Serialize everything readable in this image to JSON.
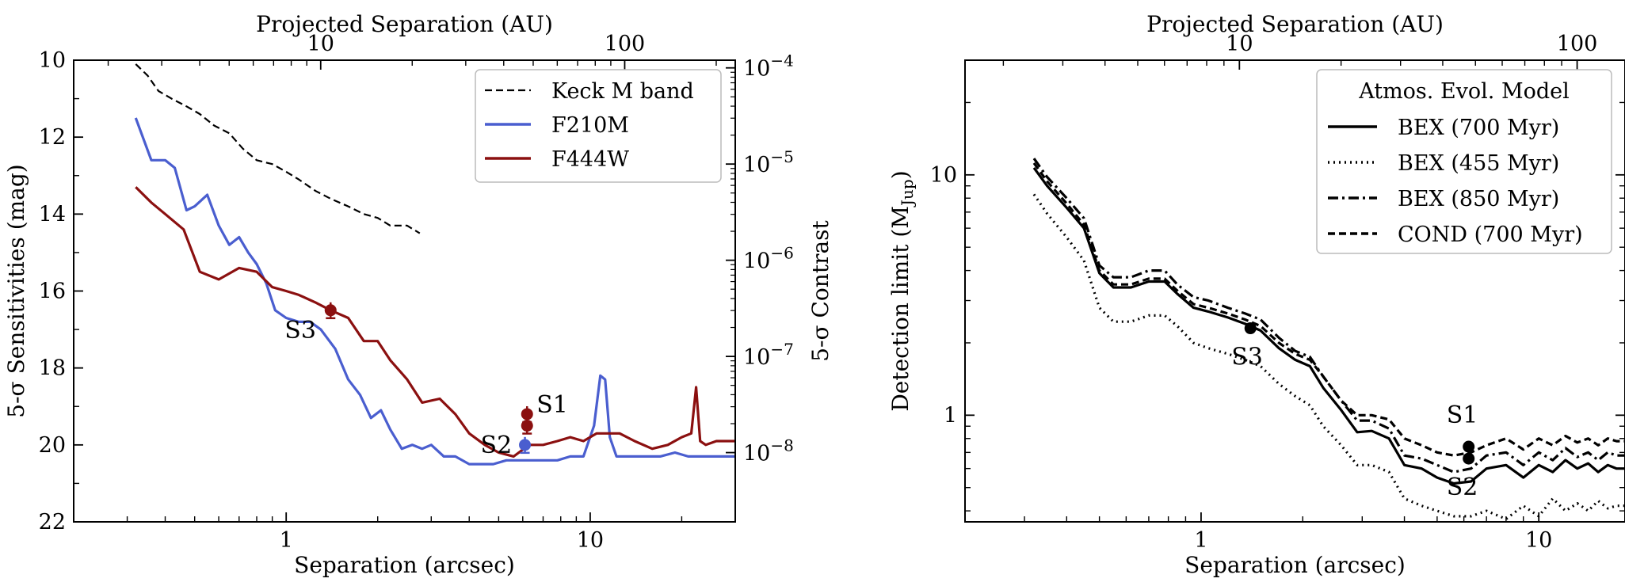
{
  "chart_data": [
    {
      "type": "line",
      "panel": "left",
      "xscale": "log",
      "xlim": [
        0.2,
        30
      ],
      "ylim": [
        22,
        10
      ],
      "y_inverted": true,
      "xlabel": "Separation (arcsec)",
      "ylabel": "5-σ Sensitivities (mag)",
      "x2label": "Projected Separation (AU)",
      "y2label": "5-σ Contrast",
      "xticks": [
        {
          "v": 1,
          "label": "1"
        },
        {
          "v": 10,
          "label": "10"
        }
      ],
      "yticks": [
        10,
        12,
        14,
        16,
        18,
        20,
        22
      ],
      "x2ticks": [
        {
          "v": 10,
          "label": "10"
        },
        {
          "v": 100,
          "label": "100"
        }
      ],
      "x2_au_per_arcsec": 7.7,
      "y2ticks": [
        {
          "mag": 10.2,
          "label": "10",
          "exp": "−4"
        },
        {
          "mag": 12.7,
          "label": "10",
          "exp": "−5"
        },
        {
          "mag": 15.2,
          "label": "10",
          "exp": "−6"
        },
        {
          "mag": 17.7,
          "label": "10",
          "exp": "−7"
        },
        {
          "mag": 20.2,
          "label": "10",
          "exp": "−8"
        }
      ],
      "legend_position": "top-right",
      "series": [
        {
          "name": "Keck M band",
          "color": "#000000",
          "style": "dashed",
          "x": [
            0.32,
            0.35,
            0.38,
            0.42,
            0.47,
            0.52,
            0.58,
            0.65,
            0.72,
            0.8,
            0.9,
            1.0,
            1.1,
            1.25,
            1.4,
            1.6,
            1.8,
            2.0,
            2.2,
            2.5,
            2.75
          ],
          "y": [
            10.1,
            10.4,
            10.8,
            11.0,
            11.2,
            11.4,
            11.7,
            11.9,
            12.3,
            12.6,
            12.7,
            12.9,
            13.1,
            13.4,
            13.6,
            13.8,
            14.0,
            14.1,
            14.3,
            14.3,
            14.5
          ]
        },
        {
          "name": "F210M",
          "color": "#4a5ecf",
          "style": "solid",
          "x": [
            0.32,
            0.36,
            0.4,
            0.43,
            0.47,
            0.5,
            0.55,
            0.6,
            0.65,
            0.7,
            0.75,
            0.8,
            0.86,
            0.92,
            1.0,
            1.1,
            1.2,
            1.3,
            1.45,
            1.6,
            1.75,
            1.9,
            2.05,
            2.2,
            2.4,
            2.6,
            2.8,
            3.0,
            3.3,
            3.6,
            4.0,
            4.4,
            4.8,
            5.3,
            5.8,
            6.4,
            7.0,
            7.8,
            8.6,
            9.5,
            10.3,
            10.8,
            11.2,
            11.6,
            12.2,
            13.5,
            15,
            17,
            19,
            21,
            24,
            27,
            30
          ],
          "y": [
            11.5,
            12.6,
            12.6,
            12.8,
            13.9,
            13.8,
            13.5,
            14.3,
            14.8,
            14.6,
            15.0,
            15.3,
            15.8,
            16.5,
            16.7,
            16.8,
            16.8,
            17.0,
            17.5,
            18.3,
            18.7,
            19.3,
            19.1,
            19.6,
            20.1,
            20.0,
            20.1,
            20.0,
            20.3,
            20.3,
            20.5,
            20.5,
            20.5,
            20.4,
            20.4,
            20.4,
            20.4,
            20.4,
            20.3,
            20.3,
            19.5,
            18.2,
            18.3,
            19.8,
            20.3,
            20.3,
            20.3,
            20.3,
            20.2,
            20.3,
            20.3,
            20.3,
            20.3
          ]
        },
        {
          "name": "F444W",
          "color": "#8b1010",
          "style": "solid",
          "x": [
            0.32,
            0.36,
            0.4,
            0.46,
            0.52,
            0.6,
            0.7,
            0.8,
            0.9,
            1.0,
            1.1,
            1.25,
            1.4,
            1.6,
            1.8,
            2.0,
            2.2,
            2.5,
            2.8,
            3.2,
            3.6,
            4.0,
            4.5,
            5.0,
            5.6,
            6.3,
            7.0,
            7.8,
            8.6,
            9.5,
            10.5,
            11.5,
            12.5,
            14,
            16,
            18,
            20,
            21.5,
            22.3,
            23,
            24,
            26,
            28,
            30
          ],
          "y": [
            13.3,
            13.7,
            14.0,
            14.4,
            15.5,
            15.7,
            15.4,
            15.5,
            15.9,
            16.0,
            16.1,
            16.3,
            16.5,
            16.7,
            17.3,
            17.3,
            17.8,
            18.3,
            18.9,
            18.8,
            19.2,
            19.7,
            20.0,
            20.2,
            20.3,
            20.0,
            20.0,
            19.9,
            19.8,
            19.9,
            19.7,
            19.7,
            19.7,
            19.9,
            20.1,
            20.0,
            19.8,
            19.7,
            18.5,
            19.9,
            20.0,
            19.9,
            19.9,
            19.9
          ]
        }
      ],
      "markers": [
        {
          "label": "S1",
          "x": 6.2,
          "y": 19.2,
          "color": "#8b1010"
        },
        {
          "label": "",
          "x": 6.2,
          "y": 19.5,
          "color": "#8b1010"
        },
        {
          "label": "S3",
          "x": 1.4,
          "y": 16.5,
          "color": "#8b1010"
        },
        {
          "label": "S2",
          "x": 6.1,
          "y": 20.0,
          "color": "#4a5ecf"
        }
      ]
    },
    {
      "type": "line",
      "panel": "right",
      "xscale": "log",
      "yscale": "log",
      "xlim": [
        0.2,
        18
      ],
      "ylim": [
        0.36,
        30
      ],
      "xlabel": "Separation (arcsec)",
      "ylabel": "Detection limit (M",
      "ylabel_sub": "Jup",
      "x2label": "Projected Separation (AU)",
      "xticks": [
        {
          "v": 1,
          "label": "1"
        },
        {
          "v": 10,
          "label": "10"
        }
      ],
      "yticks": [
        {
          "v": 1,
          "label": "1"
        },
        {
          "v": 10,
          "label": "10"
        }
      ],
      "x2ticks": [
        {
          "v": 10,
          "label": "10"
        },
        {
          "v": 100,
          "label": "100"
        }
      ],
      "x2_au_per_arcsec": 7.7,
      "legend_title": "Atmos. Evol. Model",
      "legend_position": "top-right",
      "series": [
        {
          "name": "BEX (700 Myr)",
          "color": "#000000",
          "style": "solid",
          "x": [
            0.32,
            0.35,
            0.4,
            0.45,
            0.5,
            0.55,
            0.62,
            0.7,
            0.78,
            0.85,
            0.95,
            1.05,
            1.2,
            1.35,
            1.5,
            1.7,
            1.9,
            2.1,
            2.3,
            2.6,
            2.9,
            3.2,
            3.6,
            4.0,
            4.5,
            5.0,
            5.6,
            6.3,
            7.0,
            8.0,
            9.0,
            10,
            11,
            12,
            13,
            14,
            15,
            16,
            17,
            18
          ],
          "y": [
            10.7,
            9.0,
            7.3,
            6.0,
            3.9,
            3.4,
            3.4,
            3.6,
            3.6,
            3.2,
            2.8,
            2.7,
            2.55,
            2.4,
            2.25,
            1.9,
            1.7,
            1.6,
            1.3,
            1.05,
            0.85,
            0.86,
            0.8,
            0.62,
            0.6,
            0.55,
            0.52,
            0.53,
            0.6,
            0.62,
            0.55,
            0.62,
            0.58,
            0.65,
            0.6,
            0.63,
            0.58,
            0.62,
            0.6,
            0.6
          ]
        },
        {
          "name": "BEX (455 Myr)",
          "color": "#000000",
          "style": "dotted",
          "x": [
            0.32,
            0.35,
            0.4,
            0.45,
            0.5,
            0.55,
            0.62,
            0.7,
            0.78,
            0.85,
            0.95,
            1.05,
            1.2,
            1.35,
            1.5,
            1.7,
            1.9,
            2.1,
            2.3,
            2.6,
            2.9,
            3.2,
            3.6,
            4.0,
            4.5,
            5.0,
            5.6,
            6.3,
            7.0,
            8.0,
            9.0,
            10,
            11,
            12,
            13,
            14,
            15,
            16,
            17,
            18
          ],
          "y": [
            8.3,
            6.9,
            5.5,
            4.4,
            2.8,
            2.45,
            2.45,
            2.6,
            2.6,
            2.35,
            2.0,
            1.9,
            1.8,
            1.7,
            1.6,
            1.35,
            1.2,
            1.1,
            0.9,
            0.75,
            0.62,
            0.62,
            0.58,
            0.45,
            0.42,
            0.4,
            0.38,
            0.38,
            0.4,
            0.37,
            0.42,
            0.38,
            0.45,
            0.4,
            0.43,
            0.4,
            0.44,
            0.41,
            0.42,
            0.42
          ]
        },
        {
          "name": "BEX (850 Myr)",
          "color": "#000000",
          "style": "dashdot",
          "x": [
            0.32,
            0.35,
            0.4,
            0.45,
            0.5,
            0.55,
            0.62,
            0.7,
            0.78,
            0.85,
            0.95,
            1.05,
            1.2,
            1.35,
            1.5,
            1.7,
            1.9,
            2.1,
            2.3,
            2.6,
            2.9,
            3.2,
            3.6,
            4.0,
            4.5,
            5.0,
            5.6,
            6.3,
            7.0,
            8.0,
            9.0,
            10,
            11,
            12,
            13,
            14,
            15,
            16,
            17,
            18
          ],
          "y": [
            11.7,
            9.8,
            8.0,
            6.6,
            4.2,
            3.75,
            3.75,
            4.0,
            4.0,
            3.5,
            3.1,
            3.0,
            2.8,
            2.65,
            2.5,
            2.1,
            1.85,
            1.75,
            1.45,
            1.15,
            0.95,
            0.95,
            0.88,
            0.68,
            0.66,
            0.62,
            0.58,
            0.6,
            0.68,
            0.7,
            0.62,
            0.7,
            0.65,
            0.73,
            0.67,
            0.7,
            0.65,
            0.7,
            0.68,
            0.68
          ]
        },
        {
          "name": "COND (700 Myr)",
          "color": "#000000",
          "style": "dashed",
          "x": [
            0.32,
            0.35,
            0.4,
            0.45,
            0.5,
            0.55,
            0.62,
            0.7,
            0.78,
            0.85,
            0.95,
            1.05,
            1.2,
            1.35,
            1.5,
            1.7,
            1.9,
            2.1,
            2.3,
            2.6,
            2.9,
            3.2,
            3.6,
            4.0,
            4.5,
            5.0,
            5.6,
            6.3,
            7.0,
            8.0,
            9.0,
            10,
            11,
            12,
            13,
            14,
            15,
            16,
            17,
            18
          ],
          "y": [
            11.2,
            9.4,
            7.6,
            6.2,
            4.0,
            3.5,
            3.5,
            3.7,
            3.7,
            3.3,
            2.9,
            2.8,
            2.65,
            2.5,
            2.35,
            2.0,
            1.8,
            1.7,
            1.45,
            1.15,
            1.0,
            1.0,
            0.96,
            0.8,
            0.75,
            0.7,
            0.68,
            0.7,
            0.75,
            0.8,
            0.72,
            0.8,
            0.75,
            0.82,
            0.77,
            0.8,
            0.75,
            0.8,
            0.78,
            0.78
          ]
        }
      ],
      "markers": [
        {
          "label": "S1",
          "x": 6.2,
          "y": 0.74,
          "color": "#000000"
        },
        {
          "label": "S2",
          "x": 6.2,
          "y": 0.66,
          "color": "#000000"
        },
        {
          "label": "S3",
          "x": 1.4,
          "y": 2.3,
          "color": "#000000"
        }
      ]
    }
  ]
}
